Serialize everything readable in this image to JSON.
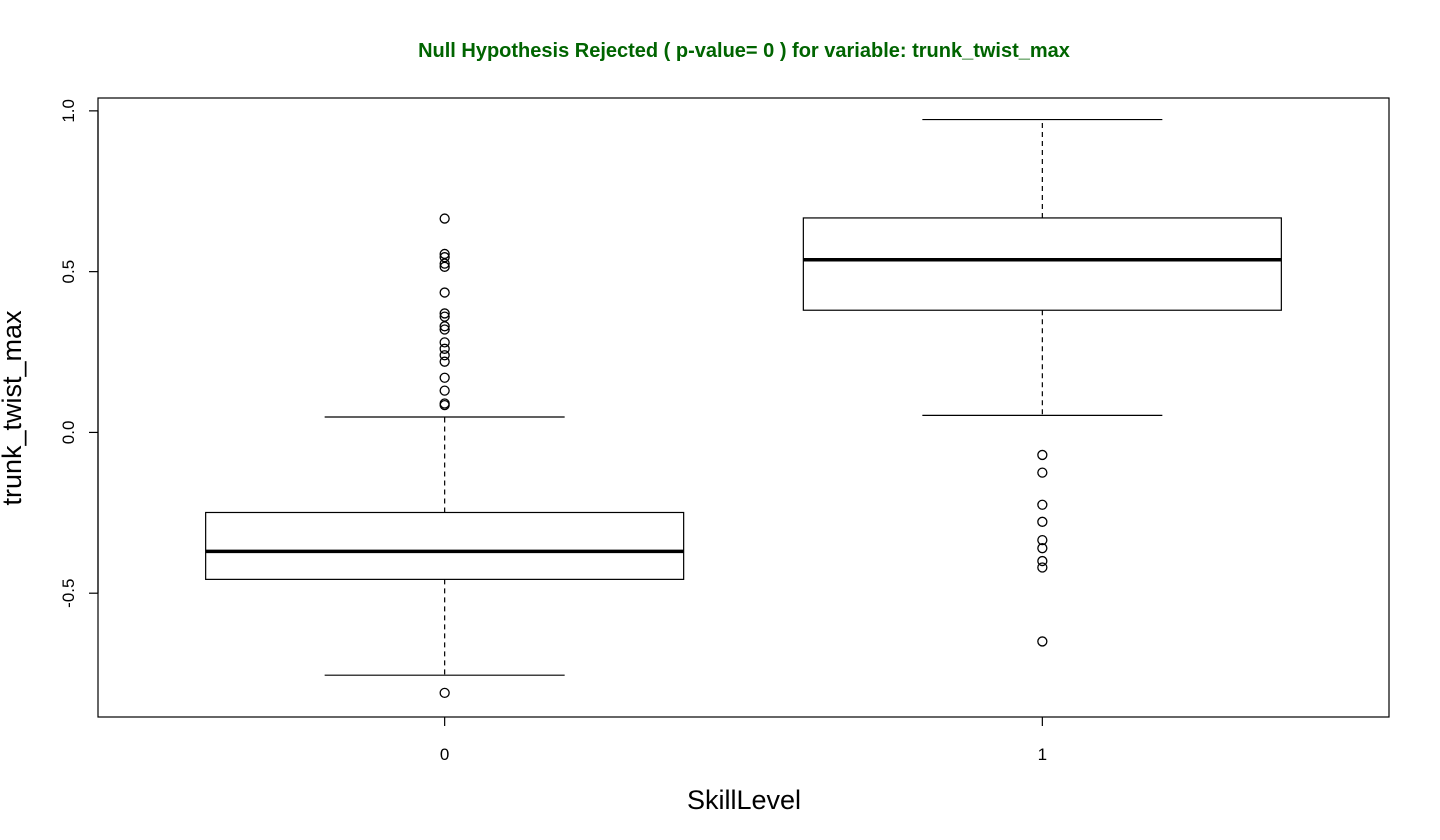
{
  "chart_data": {
    "type": "box",
    "title": "Null Hypothesis Rejected ( p-value= 0 ) for variable: trunk_twist_max",
    "title_color": "#006400",
    "xlabel": "SkillLevel",
    "ylabel": "trunk_twist_max",
    "ylim": [
      -0.885,
      1.04
    ],
    "y_ticks": [
      -0.5,
      0.0,
      0.5,
      1.0
    ],
    "y_tick_labels": [
      "-0.5",
      "0.0",
      "0.5",
      "1.0"
    ],
    "categories": [
      "0",
      "1"
    ],
    "grid": false,
    "legend": "none",
    "boxes": [
      {
        "category": "0",
        "whisker_low": -0.755,
        "q1": -0.457,
        "median": -0.37,
        "q3": -0.249,
        "whisker_high": 0.048,
        "outliers": [
          -0.81,
          0.085,
          0.09,
          0.13,
          0.17,
          0.22,
          0.24,
          0.26,
          0.28,
          0.32,
          0.33,
          0.36,
          0.37,
          0.435,
          0.515,
          0.525,
          0.545,
          0.555,
          0.665
        ]
      },
      {
        "category": "1",
        "whisker_low": 0.053,
        "q1": 0.38,
        "median": 0.537,
        "q3": 0.667,
        "whisker_high": 0.973,
        "outliers": [
          -0.07,
          -0.125,
          -0.225,
          -0.278,
          -0.335,
          -0.36,
          -0.4,
          -0.42,
          -0.65
        ]
      }
    ]
  }
}
